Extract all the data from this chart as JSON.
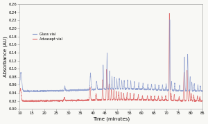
{
  "xlabel": "Time (minutes)",
  "ylabel": "Absorbance (AU)",
  "xlim": [
    10,
    85
  ],
  "ylim": [
    0.0,
    0.26
  ],
  "yticks": [
    0.0,
    0.02,
    0.04,
    0.06,
    0.08,
    0.1,
    0.12,
    0.14,
    0.16,
    0.18,
    0.2,
    0.22,
    0.24,
    0.26
  ],
  "xticks": [
    10,
    15,
    20,
    25,
    30,
    35,
    40,
    45,
    50,
    55,
    60,
    65,
    70,
    75,
    80,
    85
  ],
  "glass_color": "#8899cc",
  "advasept_color": "#dd6666",
  "legend_glass": "Glass vial",
  "legend_advasept": "Advasept vial",
  "background_color": "#f8f8f5",
  "glass_baseline": 0.044,
  "advasept_baseline": 0.02,
  "glass_peaks": {
    "times": [
      10.5,
      28.5,
      39.0,
      41.5,
      44.2,
      45.8,
      46.8,
      47.8,
      48.8,
      49.8,
      50.8,
      51.8,
      52.8,
      54.2,
      55.5,
      57.0,
      58.8,
      60.5,
      62.5,
      64.0,
      65.5,
      67.0,
      68.5,
      70.0,
      71.5,
      72.2,
      73.5,
      75.5,
      77.5,
      78.8,
      79.8,
      80.5,
      81.5,
      83.0,
      84.0
    ],
    "heights": [
      0.046,
      0.01,
      0.04,
      0.02,
      0.06,
      0.09,
      0.045,
      0.03,
      0.03,
      0.025,
      0.025,
      0.022,
      0.02,
      0.022,
      0.02,
      0.018,
      0.016,
      0.014,
      0.013,
      0.013,
      0.013,
      0.012,
      0.012,
      0.015,
      0.175,
      0.022,
      0.018,
      0.012,
      0.085,
      0.09,
      0.035,
      0.022,
      0.018,
      0.015,
      0.012
    ],
    "widths": [
      0.35,
      0.18,
      0.18,
      0.18,
      0.12,
      0.12,
      0.12,
      0.12,
      0.12,
      0.12,
      0.12,
      0.12,
      0.12,
      0.12,
      0.12,
      0.12,
      0.12,
      0.12,
      0.12,
      0.12,
      0.12,
      0.12,
      0.12,
      0.12,
      0.12,
      0.12,
      0.12,
      0.12,
      0.14,
      0.14,
      0.12,
      0.12,
      0.12,
      0.12,
      0.12
    ]
  },
  "adv_peaks": {
    "times": [
      10.3,
      28.3,
      38.8,
      41.3,
      44.0,
      45.6,
      46.6,
      47.6,
      48.6,
      49.6,
      50.6,
      51.6,
      52.6,
      54.0,
      55.3,
      56.8,
      58.6,
      60.3,
      62.3,
      63.8,
      65.3,
      66.8,
      68.3,
      69.8,
      71.3,
      72.0,
      73.3,
      75.3,
      77.3,
      78.6,
      79.6,
      80.3,
      81.3,
      82.8,
      83.8
    ],
    "heights": [
      0.03,
      0.008,
      0.032,
      0.015,
      0.05,
      0.075,
      0.038,
      0.025,
      0.025,
      0.02,
      0.02,
      0.018,
      0.016,
      0.018,
      0.016,
      0.015,
      0.013,
      0.011,
      0.01,
      0.01,
      0.01,
      0.01,
      0.01,
      0.012,
      0.215,
      0.018,
      0.015,
      0.01,
      0.07,
      0.075,
      0.028,
      0.018,
      0.015,
      0.012,
      0.01
    ],
    "widths": [
      0.3,
      0.18,
      0.18,
      0.18,
      0.12,
      0.12,
      0.12,
      0.12,
      0.12,
      0.12,
      0.12,
      0.12,
      0.12,
      0.12,
      0.12,
      0.12,
      0.12,
      0.12,
      0.12,
      0.12,
      0.12,
      0.12,
      0.12,
      0.12,
      0.12,
      0.12,
      0.12,
      0.12,
      0.14,
      0.14,
      0.12,
      0.12,
      0.12,
      0.12,
      0.12
    ]
  }
}
